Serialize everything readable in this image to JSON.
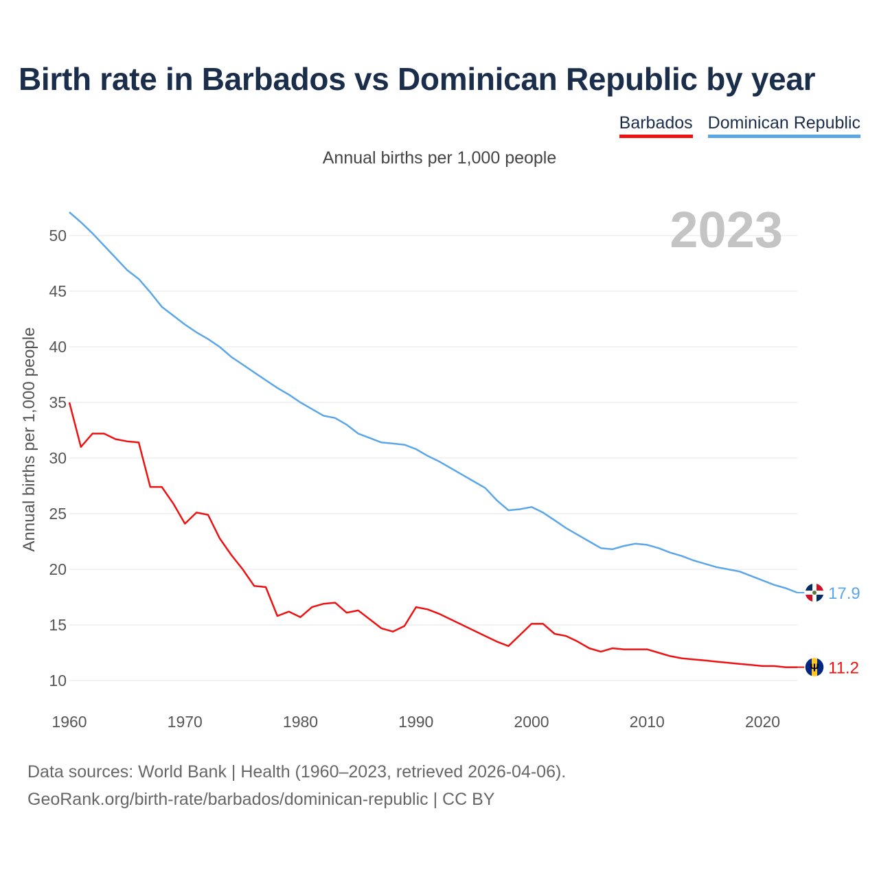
{
  "title": "Birth rate in Barbados vs Dominican Republic by year",
  "legend": {
    "items": [
      {
        "label": "Barbados",
        "color": "#ee1111"
      },
      {
        "label": "Dominican Republic",
        "color": "#5aa6e8"
      }
    ]
  },
  "subtitle": "Annual births per 1,000 people",
  "year_watermark": "2023",
  "footer": {
    "line1": "Data sources: World Bank | Health (1960–2023, retrieved 2026-04-06).",
    "line2": "GeoRank.org/birth-rate/barbados/dominican-republic | CC BY"
  },
  "chart_data": {
    "type": "line",
    "title": "Birth rate in Barbados vs Dominican Republic by year",
    "xlabel": "",
    "ylabel": "Annual births per 1,000 people",
    "xlim": [
      1960,
      2023
    ],
    "ylim": [
      8,
      53
    ],
    "x_ticks": [
      1960,
      1970,
      1980,
      1990,
      2000,
      2010,
      2020
    ],
    "y_ticks": [
      10,
      15,
      20,
      25,
      30,
      35,
      40,
      45,
      50
    ],
    "grid": true,
    "legend_position": "top-right",
    "x": [
      1960,
      1961,
      1962,
      1963,
      1964,
      1965,
      1966,
      1967,
      1968,
      1969,
      1970,
      1971,
      1972,
      1973,
      1974,
      1975,
      1976,
      1977,
      1978,
      1979,
      1980,
      1981,
      1982,
      1983,
      1984,
      1985,
      1986,
      1987,
      1988,
      1989,
      1990,
      1991,
      1992,
      1993,
      1994,
      1995,
      1996,
      1997,
      1998,
      1999,
      2000,
      2001,
      2002,
      2003,
      2004,
      2005,
      2006,
      2007,
      2008,
      2009,
      2010,
      2011,
      2012,
      2013,
      2014,
      2015,
      2016,
      2017,
      2018,
      2019,
      2020,
      2021,
      2022,
      2023
    ],
    "series": [
      {
        "name": "Barbados",
        "color": "#ee1111",
        "end_label": "11.2",
        "flag": "barbados-flag",
        "values": [
          35.0,
          31.0,
          32.2,
          32.2,
          31.7,
          31.5,
          31.4,
          27.4,
          27.4,
          25.9,
          24.1,
          25.1,
          24.9,
          22.8,
          21.3,
          20.0,
          18.5,
          18.4,
          15.8,
          16.2,
          15.7,
          16.6,
          16.9,
          17.0,
          16.1,
          16.3,
          15.5,
          14.7,
          14.4,
          14.9,
          16.6,
          16.4,
          16.0,
          15.5,
          15.0,
          14.5,
          14.0,
          13.5,
          13.1,
          14.1,
          15.1,
          15.1,
          14.2,
          14.0,
          13.5,
          12.9,
          12.6,
          12.9,
          12.8,
          12.8,
          12.8,
          12.5,
          12.2,
          12.0,
          11.9,
          11.8,
          11.7,
          11.6,
          11.5,
          11.4,
          11.3,
          11.3,
          11.2,
          11.2
        ]
      },
      {
        "name": "Dominican Republic",
        "color": "#5aa6e8",
        "end_label": "17.9",
        "flag": "dominican-republic-flag",
        "values": [
          52.1,
          51.2,
          50.2,
          49.1,
          48.0,
          46.9,
          46.1,
          44.9,
          43.6,
          42.8,
          42.0,
          41.3,
          40.7,
          40.0,
          39.1,
          38.4,
          37.7,
          37.0,
          36.3,
          35.7,
          35.0,
          34.4,
          33.8,
          33.6,
          33.0,
          32.2,
          31.8,
          31.4,
          31.3,
          31.2,
          30.8,
          30.2,
          29.7,
          29.1,
          28.5,
          27.9,
          27.3,
          26.2,
          25.3,
          25.4,
          25.6,
          25.1,
          24.4,
          23.7,
          23.1,
          22.5,
          21.9,
          21.8,
          22.1,
          22.3,
          22.2,
          21.9,
          21.5,
          21.2,
          20.8,
          20.5,
          20.2,
          20.0,
          19.8,
          19.4,
          19.0,
          18.6,
          18.3,
          17.9
        ]
      }
    ]
  }
}
